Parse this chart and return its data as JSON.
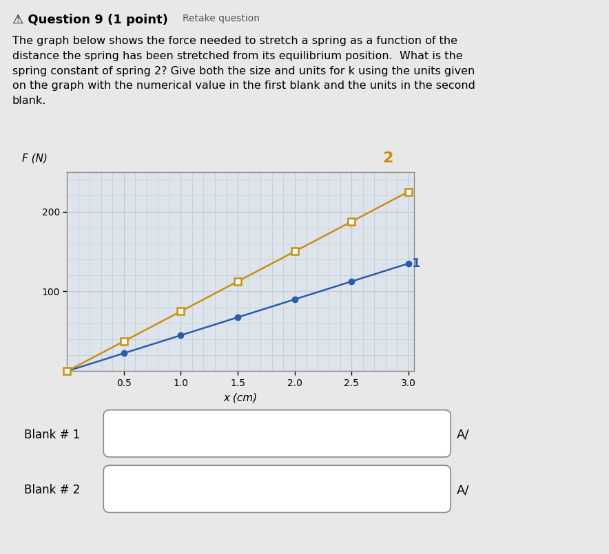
{
  "title_bold": "⚠ Question 9 (1 point)",
  "title_normal": "Retake question",
  "body_text": "The graph below shows the force needed to stretch a spring as a function of the\ndistance the spring has been stretched from its equilibrium position.  What is the\nspring constant of spring 2? Give both the size and units for k using the units given\non the graph with the numerical value in the first blank and the units in the second\nblank.",
  "xlabel": "x (cm)",
  "ylabel": "F (N)",
  "xlim": [
    0,
    3.05
  ],
  "ylim": [
    0,
    250
  ],
  "xticks": [
    0.5,
    1.0,
    1.5,
    2.0,
    2.5,
    3.0
  ],
  "yticks": [
    100,
    200
  ],
  "spring1_x": [
    0,
    0.5,
    1.0,
    1.5,
    2.0,
    2.5,
    3.0
  ],
  "spring1_y": [
    0,
    22.5,
    45,
    67.5,
    90,
    112.5,
    135
  ],
  "spring2_x": [
    0,
    0.5,
    1.0,
    1.5,
    2.0,
    2.5,
    3.0
  ],
  "spring2_y": [
    0,
    37.5,
    75,
    112.5,
    150,
    187.5,
    225
  ],
  "spring1_color": "#2a5caa",
  "spring2_color": "#c8900a",
  "spring1_label": "1",
  "spring2_label": "2",
  "grid_color": "#c0c8d0",
  "bg_color": "#dde4ec",
  "blank1_label": "Blank # 1",
  "blank2_label": "Blank # 2",
  "fig_bg": "#c8c8c8",
  "page_bg": "#e8e8e8"
}
